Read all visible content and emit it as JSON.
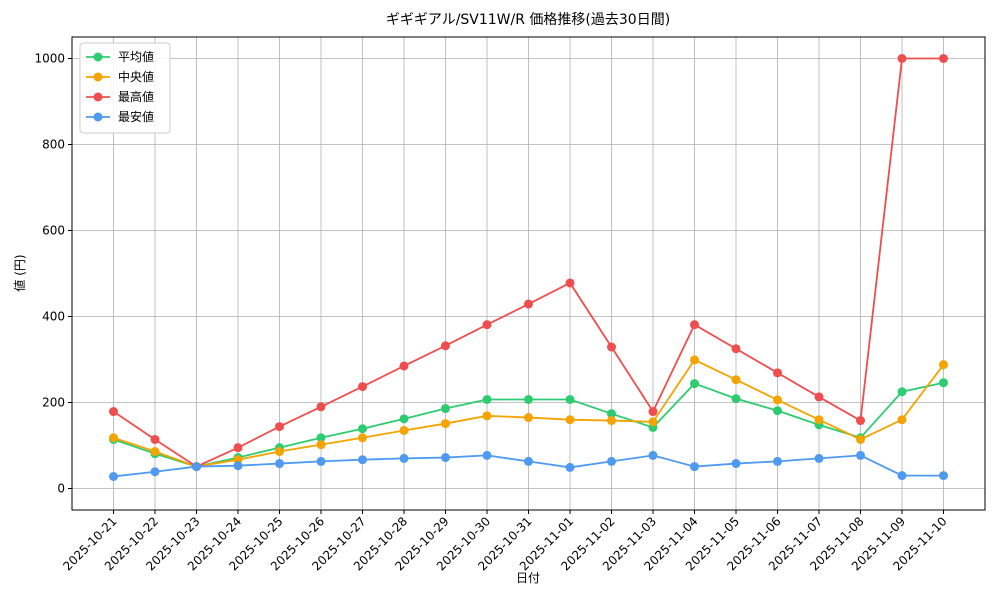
{
  "chart_data": {
    "type": "line",
    "title": "ギギギアル/SV11W/R 価格推移(過去30日間)",
    "x_label": "日付",
    "y_label": "値 (円)",
    "categories": [
      "2025-10-21",
      "2025-10-22",
      "2025-10-23",
      "2025-10-24",
      "2025-10-25",
      "2025-10-26",
      "2025-10-27",
      "2025-10-28",
      "2025-10-29",
      "2025-10-30",
      "2025-10-31",
      "2025-11-01",
      "2025-11-02",
      "2025-11-03",
      "2025-11-04",
      "2025-11-05",
      "2025-11-06",
      "2025-11-07",
      "2025-11-08",
      "2025-11-09",
      "2025-11-10"
    ],
    "series": [
      {
        "name": "平均値",
        "color": "#2ecc71",
        "values": [
          114,
          81,
          51,
          72,
          95,
          118,
          139,
          162,
          186,
          207,
          207,
          207,
          174,
          142,
          244,
          209,
          181,
          148,
          118,
          225,
          246
        ]
      },
      {
        "name": "中央値",
        "color": "#f5a300",
        "values": [
          118,
          86,
          51,
          67,
          86,
          102,
          118,
          135,
          151,
          169,
          165,
          160,
          158,
          155,
          299,
          253,
          206,
          160,
          114,
          160,
          288
        ]
      },
      {
        "name": "最高値",
        "color": "#f04e4e",
        "values": [
          179,
          114,
          51,
          95,
          144,
          190,
          237,
          285,
          332,
          381,
          429,
          478,
          329,
          179,
          381,
          325,
          269,
          213,
          158,
          1000,
          1000
        ]
      },
      {
        "name": "最安値",
        "color": "#4e9af1",
        "values": [
          28,
          39,
          51,
          53,
          58,
          63,
          67,
          70,
          72,
          77,
          63,
          49,
          63,
          77,
          51,
          58,
          63,
          70,
          77,
          30,
          30
        ]
      }
    ],
    "ylim": [
      -50,
      1050
    ],
    "yticks": [
      0,
      200,
      400,
      600,
      800,
      1000
    ],
    "grid": true,
    "legend": "upper left"
  }
}
